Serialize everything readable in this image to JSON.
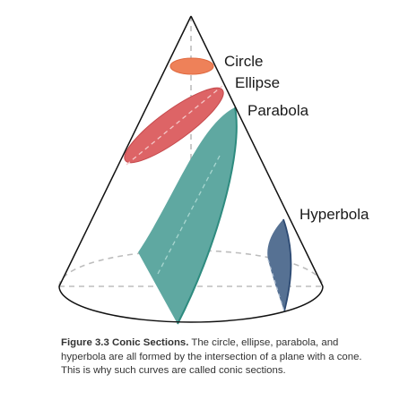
{
  "figure": {
    "labels": {
      "circle": "Circle",
      "ellipse": "Ellipse",
      "parabola": "Parabola",
      "hyperbola": "Hyperbola"
    }
  },
  "caption": {
    "title": "Figure 3.3 Conic Sections.",
    "text": "The circle, ellipse, parabola, and hyperbola are all formed by the intersection of a plane with a cone. This is why such curves are called conic sections."
  },
  "colors": {
    "circle": "#ee8159",
    "ellipse": "#dd6466",
    "parabola": "#5fa8a1",
    "parabola_edge": "#2e8b7f",
    "hyperbola": "#567193",
    "hyperbola_edge": "#2d4a73",
    "cone_outline": "#111111",
    "dashed": "#bdbdbd"
  }
}
